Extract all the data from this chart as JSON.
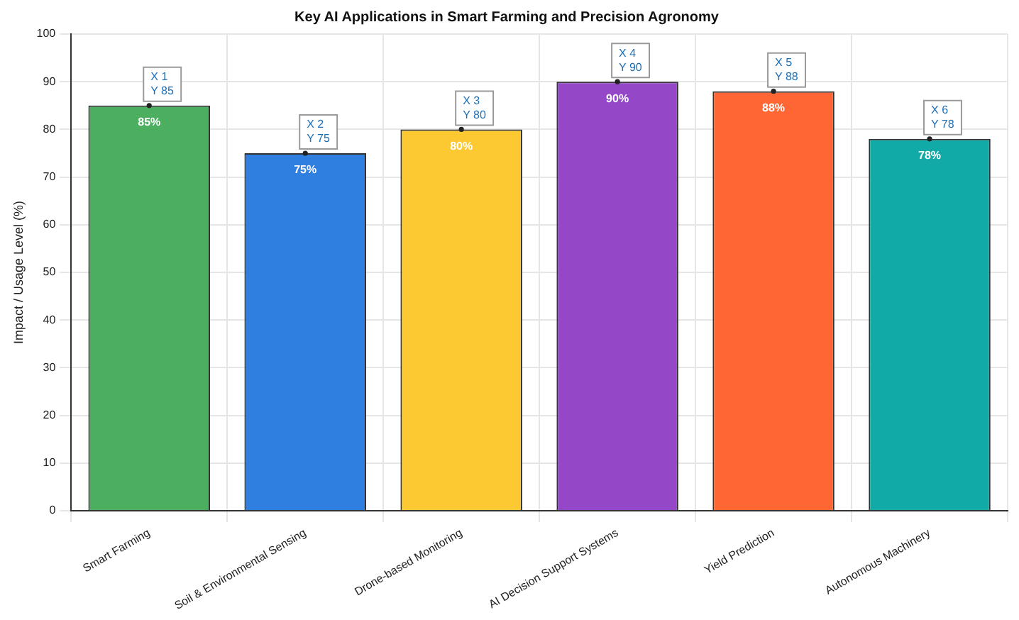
{
  "chart_data": {
    "type": "bar",
    "title": "Key AI Applications in Smart Farming and Precision Agronomy",
    "ylabel": "Impact / Usage Level (%)",
    "categories": [
      "Smart Farming",
      "Soil & Environmental Sensing",
      "Drone-based Monitoring",
      "AI Decision Support Systems",
      "Yield Prediction",
      "Autonomous Machinery"
    ],
    "values": [
      85,
      75,
      80,
      90,
      88,
      78
    ],
    "colors": [
      "#4caf60",
      "#2f7fe0",
      "#fdc933",
      "#9448c8",
      "#ff6633",
      "#11aaa6"
    ],
    "value_labels": [
      "85%",
      "75%",
      "80%",
      "90%",
      "88%",
      "78%"
    ],
    "ylim": [
      0,
      100
    ],
    "yticks": [
      0,
      10,
      20,
      30,
      40,
      50,
      60,
      70,
      80,
      90,
      100
    ],
    "grid": true,
    "annotations": [
      {
        "text": "X 1\nY 85",
        "x": "Smart Farming",
        "y": 85
      },
      {
        "text": "X 2\nY 75",
        "x": "Soil & Environmental Sensing",
        "y": 75
      },
      {
        "text": "X 3\nY 80",
        "x": "Drone-based Monitoring",
        "y": 80
      },
      {
        "text": "X 4\nY 90",
        "x": "AI Decision Support Systems",
        "y": 90
      },
      {
        "text": "X 5\nY 88",
        "x": "Yield Prediction",
        "y": 88
      },
      {
        "text": "X 6\nY 78",
        "x": "Autonomous Machinery",
        "y": 78
      }
    ]
  }
}
